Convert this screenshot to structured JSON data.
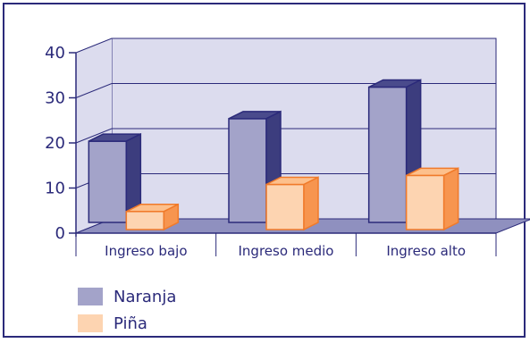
{
  "chart_data": {
    "type": "bar",
    "categories": [
      "Ingreso bajo",
      "Ingreso medio",
      "Ingreso alto"
    ],
    "series": [
      {
        "name": "Naranja",
        "values": [
          18,
          23,
          30
        ]
      },
      {
        "name": "Piña",
        "values": [
          4,
          10,
          12
        ]
      }
    ],
    "ylim": [
      0,
      40
    ],
    "yticks": [
      0,
      10,
      20,
      30,
      40
    ],
    "grid": true,
    "legend_position": "bottom-left"
  },
  "colors": {
    "frame": "#2b2a7a",
    "wall": "#dcdcee",
    "floor": "#8f90bf",
    "naranja_front": "#a3a3c9",
    "naranja_top": "#4a4b8c",
    "naranja_side": "#3c3d7e",
    "pina_front": "#fdd4b1",
    "pina_top": "#fdc08c",
    "pina_side": "#f7954f",
    "pina_stroke": "#f07a2a"
  }
}
